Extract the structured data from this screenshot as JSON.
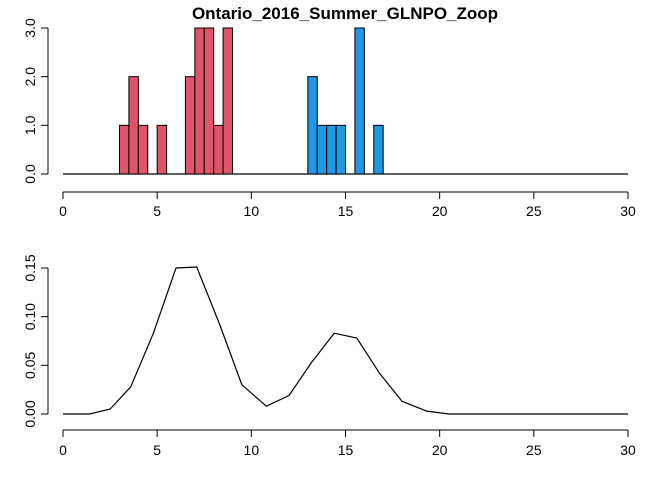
{
  "chart_data": [
    {
      "type": "bar",
      "title": "Ontario_2016_Summer_GLNPO_Zoop",
      "xlabel": "",
      "ylabel": "",
      "xlim": [
        0,
        30
      ],
      "ylim": [
        0,
        3
      ],
      "x_ticks": [
        "0",
        "5",
        "10",
        "15",
        "20",
        "25",
        "30"
      ],
      "y_ticks": [
        "0.0",
        "1.0",
        "2.0",
        "3.0"
      ],
      "bin_width": 0.5,
      "grid": false,
      "legend": "none",
      "baseline": {
        "from": 0,
        "to": 30
      },
      "series": [
        {
          "color": "#DF536B",
          "bins": [
            {
              "x": 3.0,
              "value": 1
            },
            {
              "x": 3.5,
              "value": 2
            },
            {
              "x": 4.0,
              "value": 1
            },
            {
              "x": 5.0,
              "value": 1
            },
            {
              "x": 6.5,
              "value": 2
            },
            {
              "x": 7.0,
              "value": 3
            },
            {
              "x": 7.5,
              "value": 3
            },
            {
              "x": 8.0,
              "value": 1
            },
            {
              "x": 8.5,
              "value": 3
            }
          ]
        },
        {
          "color": "#2297E6",
          "bins": [
            {
              "x": 13.0,
              "value": 2
            },
            {
              "x": 13.5,
              "value": 1
            },
            {
              "x": 14.0,
              "value": 1
            },
            {
              "x": 14.5,
              "value": 1
            },
            {
              "x": 15.5,
              "value": 3
            },
            {
              "x": 16.5,
              "value": 1
            }
          ]
        }
      ]
    },
    {
      "type": "line",
      "title": "",
      "xlabel": "",
      "ylabel": "",
      "xlim": [
        0,
        30
      ],
      "ylim": [
        0,
        0.15
      ],
      "x_ticks": [
        "0",
        "5",
        "10",
        "15",
        "20",
        "25",
        "30"
      ],
      "y_ticks": [
        "0.00",
        "0.05",
        "0.10",
        "0.15"
      ],
      "grid": false,
      "legend": "none",
      "color": "#000000",
      "points": [
        [
          0.0,
          0.0
        ],
        [
          1.4,
          0.0
        ],
        [
          2.5,
          0.005
        ],
        [
          3.6,
          0.028
        ],
        [
          4.8,
          0.083
        ],
        [
          6.0,
          0.15
        ],
        [
          7.1,
          0.151
        ],
        [
          8.3,
          0.093
        ],
        [
          9.5,
          0.03
        ],
        [
          10.8,
          0.008
        ],
        [
          12.0,
          0.019
        ],
        [
          13.2,
          0.053
        ],
        [
          14.4,
          0.083
        ],
        [
          15.6,
          0.078
        ],
        [
          16.8,
          0.042
        ],
        [
          18.0,
          0.013
        ],
        [
          19.3,
          0.003
        ],
        [
          20.5,
          0.0
        ],
        [
          22.0,
          0.0
        ],
        [
          30.0,
          0.0
        ]
      ]
    }
  ]
}
